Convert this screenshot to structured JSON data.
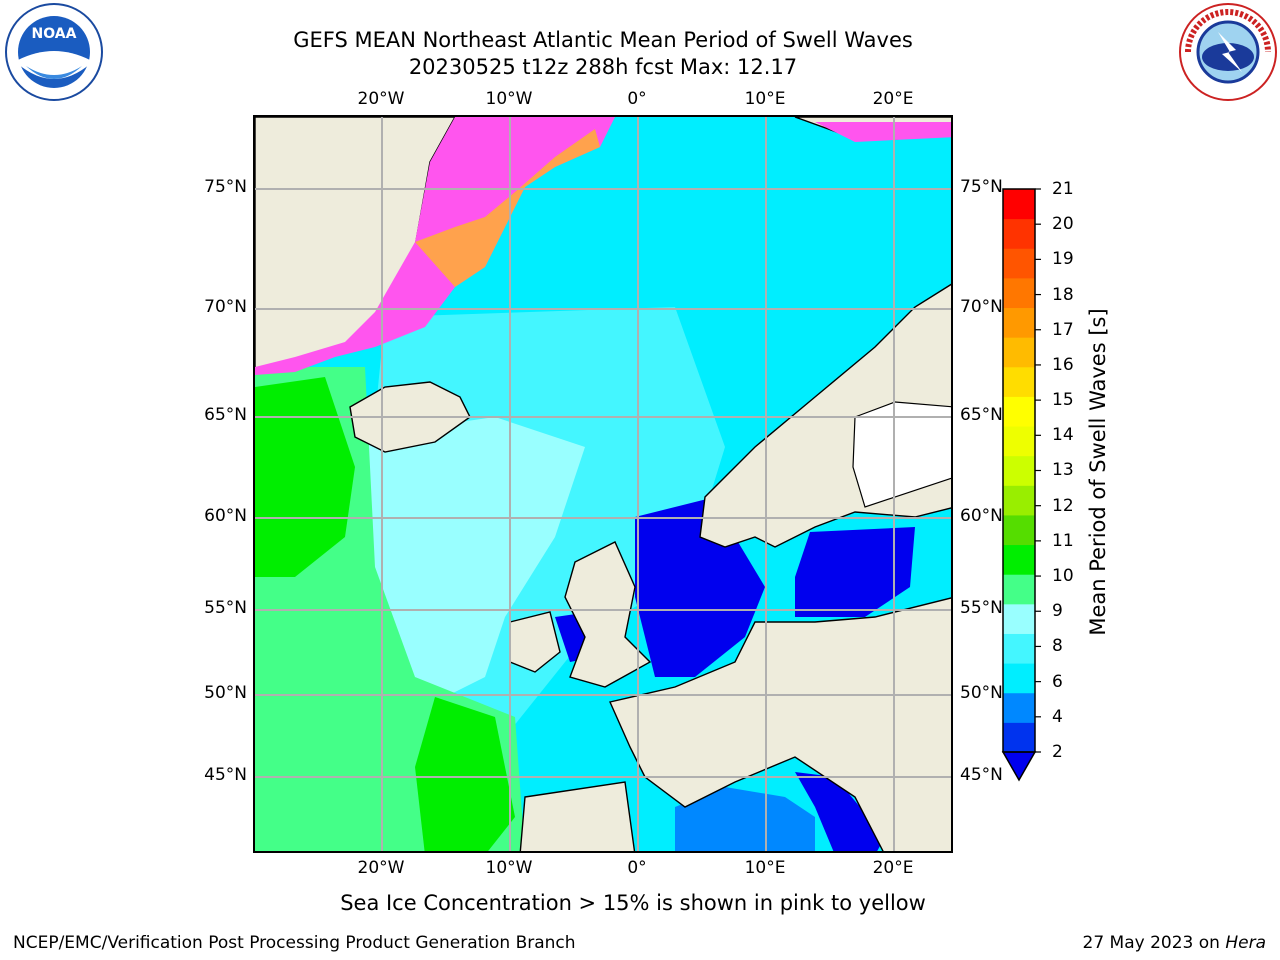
{
  "header": {
    "title_line1": "GEFS MEAN Northeast Atlantic Mean Period of Swell Waves",
    "title_line2": "20230525 t12z 288h fcst   Max: 12.17"
  },
  "logos": {
    "left": {
      "icon": "noaa-logo-icon",
      "text": "NOAA"
    },
    "right": {
      "icon": "national-weather-service-logo-icon",
      "text": "NATIONAL WEATHER SERVICE"
    }
  },
  "map": {
    "lon_ticks": [
      "20°W",
      "10°W",
      "0°",
      "10°E",
      "20°E"
    ],
    "lat_ticks": [
      "75°N",
      "70°N",
      "65°N",
      "60°N",
      "55°N",
      "50°N",
      "45°N"
    ],
    "colors": {
      "land": "#eeecdc",
      "ice_pink": "#ff55ee",
      "ice_orange": "#ffb030",
      "ice_yellow": "#ffe040",
      "grid": "#b0b0b0"
    }
  },
  "colorbar": {
    "label": "Mean Period of Swell Waves [s]",
    "ticks": [
      "21",
      "20",
      "19",
      "18",
      "17",
      "16",
      "15",
      "14",
      "13",
      "12",
      "11",
      "10",
      "9",
      "8",
      "6",
      "4",
      "2"
    ],
    "colors_bottom_to_top": [
      "#0033ee",
      "#0088ff",
      "#00eeff",
      "#44f6ff",
      "#99ffff",
      "#44ff88",
      "#00ee00",
      "#55dd00",
      "#99ee00",
      "#ccff00",
      "#eeff00",
      "#ffff00",
      "#ffdd00",
      "#ffbb00",
      "#ff9900",
      "#ff7700",
      "#ff5500",
      "#ff3300",
      "#ff0000"
    ],
    "extend_color": "#0000ee"
  },
  "subtitle": "Sea Ice Concentration > 15% is shown in pink to yellow",
  "footer": {
    "left": "NCEP/EMC/Verification Post Processing Product Generation Branch",
    "right_date": "27 May 2023 on",
    "right_host": "Hera"
  }
}
